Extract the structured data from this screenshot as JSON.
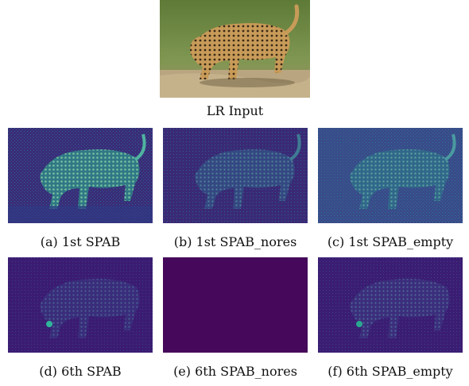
{
  "figure": {
    "input": {
      "caption": "LR Input"
    },
    "panels": [
      {
        "caption": "(a) 1st SPAB"
      },
      {
        "caption": "(b) 1st SPAB_nores"
      },
      {
        "caption": "(c) 1st SPAB_empty"
      },
      {
        "caption": "(d) 6th SPAB"
      },
      {
        "caption": "(e) 6th SPAB_nores"
      },
      {
        "caption": "(f) 6th SPAB_empty"
      }
    ]
  },
  "colors": {
    "heatmap_background": "#3b1a73",
    "heatmap_low": "#40226f",
    "heatmap_mid": "#23827a",
    "heatmap_high": "#6ec6a0",
    "empty_map": "#45085a",
    "grass": "#6f8a45",
    "soil": "#b6a27a",
    "leopard": "#c79a5a"
  }
}
